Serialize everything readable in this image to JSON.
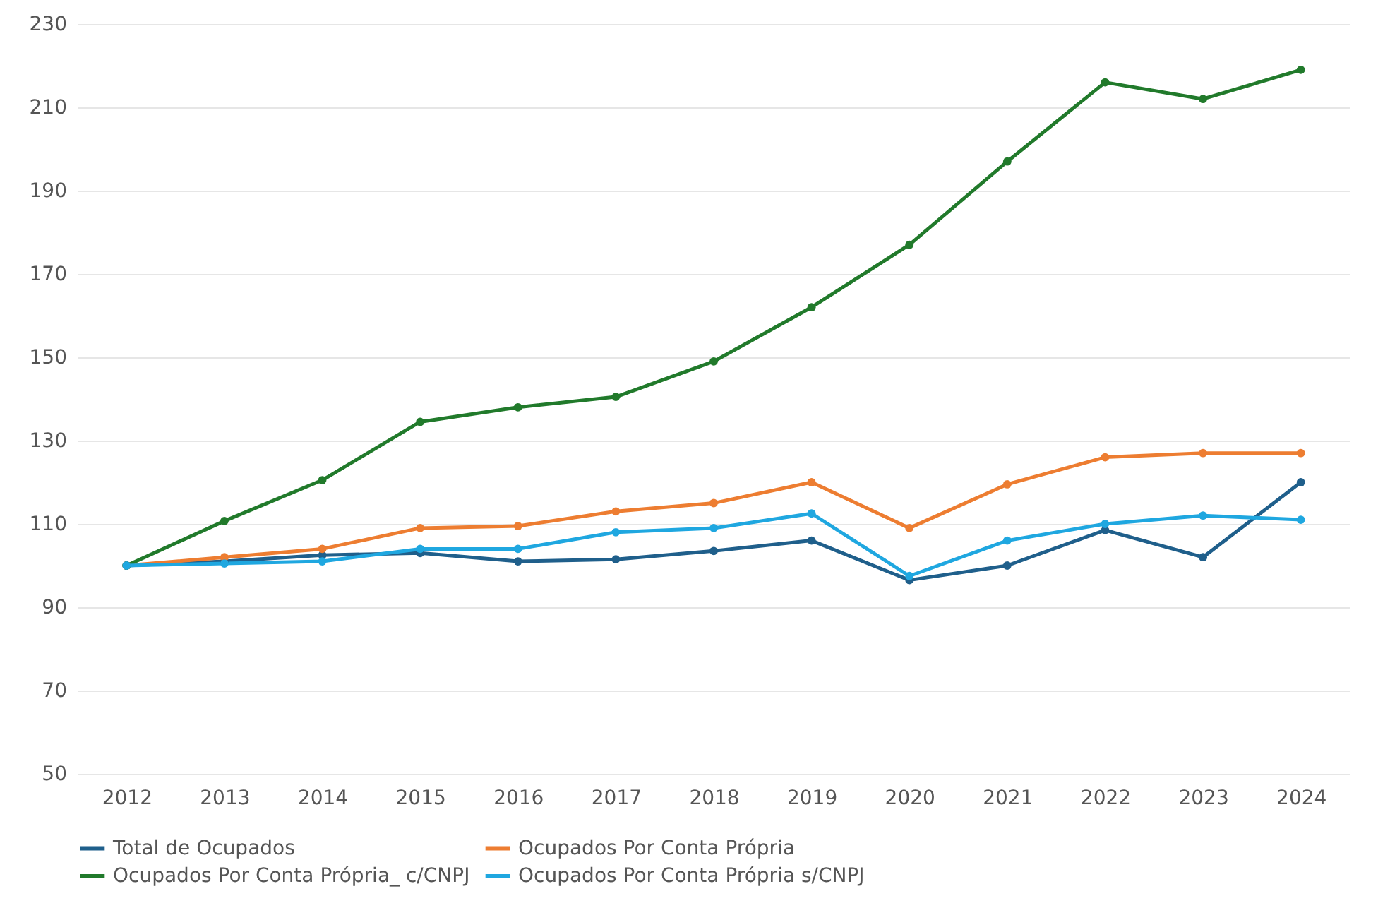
{
  "chart_data": {
    "type": "line",
    "categories": [
      "2012",
      "2013",
      "2014",
      "2015",
      "2016",
      "2017",
      "2018",
      "2019",
      "2020",
      "2021",
      "2022",
      "2023",
      "2024"
    ],
    "series": [
      {
        "name": "Total de Ocupados",
        "color": "#1f5f8b",
        "values": [
          100,
          101,
          102.5,
          103,
          101,
          101.5,
          103.5,
          106,
          96.5,
          100,
          108.5,
          102,
          120
        ]
      },
      {
        "name": "Ocupados Por Conta Própria",
        "color": "#ed7d31",
        "values": [
          100,
          102,
          104,
          109,
          109.5,
          113,
          115,
          120,
          109,
          119.5,
          126,
          127,
          127
        ]
      },
      {
        "name": "Ocupados Por Conta Própria_ c/CNPJ",
        "color": "#217a2b",
        "values": [
          100,
          110.7,
          120.5,
          134.5,
          138,
          140.5,
          149,
          162,
          177,
          197,
          216,
          212,
          219
        ]
      },
      {
        "name": "Ocupados Por Conta Própria s/CNPJ",
        "color": "#1fa7e0",
        "values": [
          100,
          100.5,
          101,
          104,
          104,
          108,
          109,
          112.5,
          97.5,
          106,
          110,
          112,
          111
        ]
      }
    ],
    "ylim": [
      50,
      230
    ],
    "yticks": [
      50,
      70,
      90,
      110,
      130,
      150,
      170,
      190,
      210,
      230
    ],
    "grid": "y",
    "legend": "bottom",
    "marker": "circle",
    "line_style": "solid"
  }
}
